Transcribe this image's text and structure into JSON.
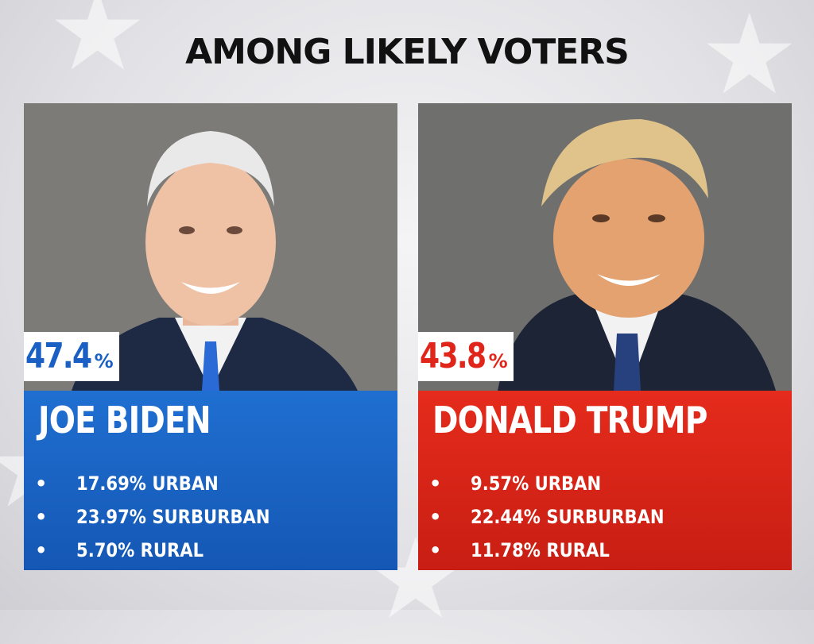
{
  "title": "AMONG LIKELY VOTERS",
  "candidates": [
    {
      "name": "JOE BIDEN",
      "percent": "47.4",
      "percent_symbol": "%",
      "color": "#1a5fc4",
      "stats": [
        "17.69% URBAN",
        "23.97% SURBURBAN",
        "5.70% RURAL"
      ]
    },
    {
      "name": "DONALD TRUMP",
      "percent": "43.8",
      "percent_symbol": "%",
      "color": "#e0261a",
      "stats": [
        "9.57% URBAN",
        "22.44% SURBURBAN",
        "11.78% RURAL"
      ]
    }
  ],
  "bullet": "•"
}
